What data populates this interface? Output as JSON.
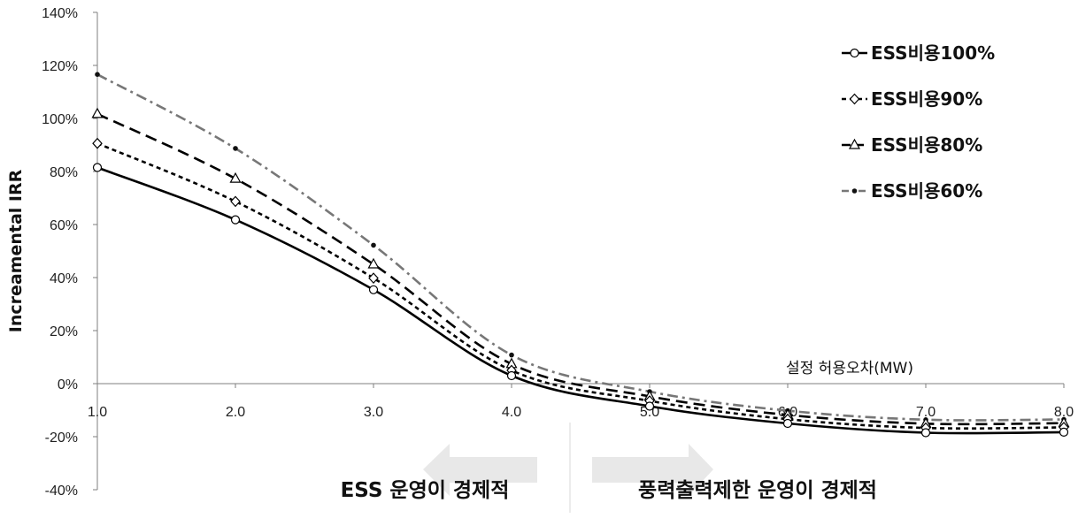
{
  "chart_data": {
    "type": "line",
    "xlabel": "설정 허용오차(MW)",
    "ylabel": "Increamental IRR",
    "x": [
      1.0,
      2.0,
      3.0,
      4.0,
      5.0,
      6.0,
      7.0,
      8.0
    ],
    "x_tick_labels": [
      "1.0",
      "2.0",
      "3.0",
      "4.0",
      "5.0",
      "6.0",
      "7.0",
      "8.0"
    ],
    "xlim": [
      1.0,
      8.0
    ],
    "ylim": [
      -40,
      140
    ],
    "y_tick_labels": [
      "-40%",
      "-20%",
      "0%",
      "20%",
      "40%",
      "60%",
      "80%",
      "100%",
      "120%",
      "140%"
    ],
    "y_unit": "%",
    "grid": false,
    "legend_position": "top-right",
    "series": [
      {
        "name": "ESS비용100%",
        "values": [
          81.5,
          61.8,
          35.4,
          3.0,
          -8.5,
          -15.0,
          -18.5,
          -18.3
        ],
        "color": "#000000",
        "dash": "solid",
        "marker": "circle"
      },
      {
        "name": "ESS비용90%",
        "values": [
          90.6,
          68.7,
          39.8,
          5.0,
          -6.5,
          -13.4,
          -16.7,
          -16.5
        ],
        "color": "#000000",
        "dash": "short-dash",
        "marker": "diamond"
      },
      {
        "name": "ESS비용80%",
        "values": [
          101.7,
          77.3,
          45.0,
          7.4,
          -4.8,
          -11.8,
          -15.1,
          -14.9
        ],
        "color": "#000000",
        "dash": "long-dash",
        "marker": "triangle"
      },
      {
        "name": "ESS비용60%",
        "values": [
          116.6,
          88.7,
          52.2,
          10.8,
          -3.0,
          -10.2,
          -13.6,
          -13.5
        ],
        "color": "#777777",
        "dash": "dash-dot",
        "marker": "dot"
      }
    ],
    "annotations": {
      "left_region": "ESS 운영이 경제적",
      "right_region": "풍력출력제한 운영이 경제적"
    }
  }
}
